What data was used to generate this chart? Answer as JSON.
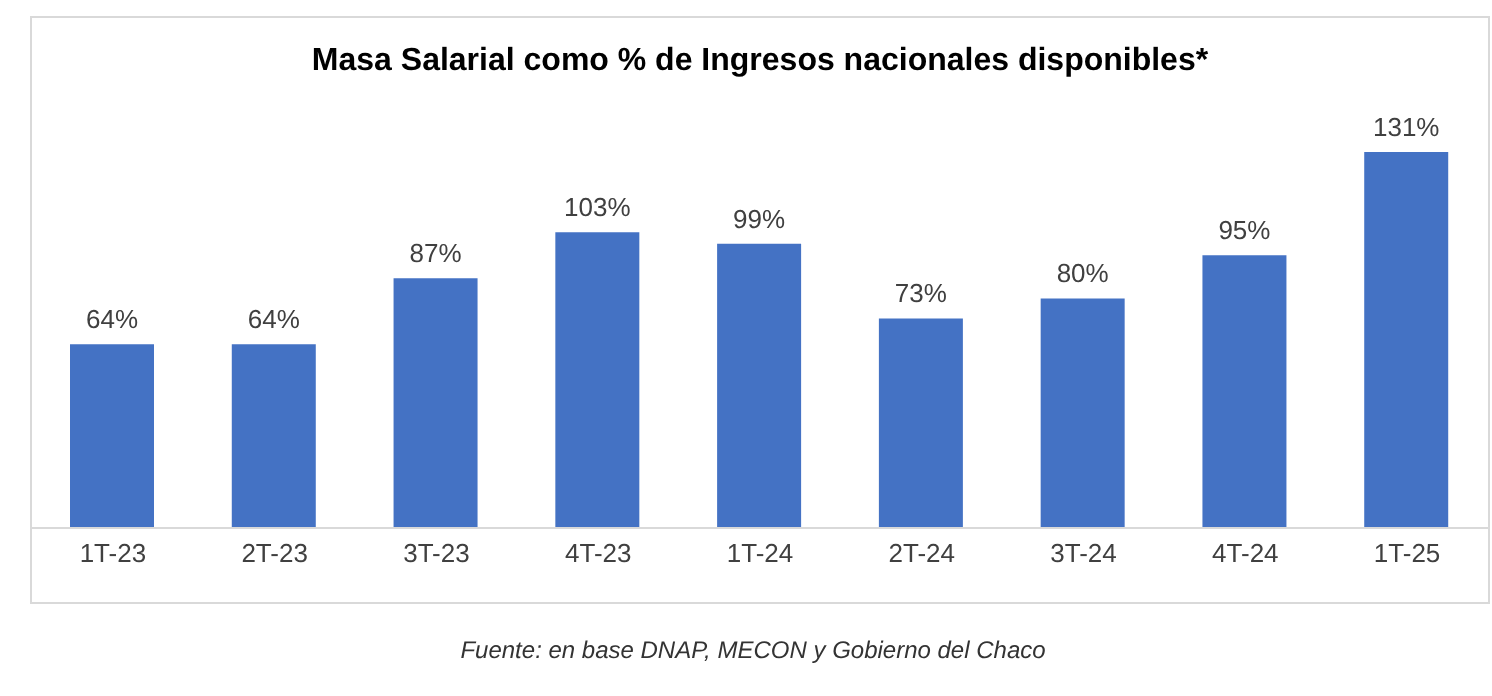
{
  "chart_data": {
    "type": "bar",
    "title": "Masa Salarial como % de Ingresos nacionales disponibles*",
    "categories": [
      "1T-23",
      "2T-23",
      "3T-23",
      "4T-23",
      "1T-24",
      "2T-24",
      "3T-24",
      "4T-24",
      "1T-25"
    ],
    "values": [
      64,
      64,
      87,
      103,
      99,
      73,
      80,
      95,
      131
    ],
    "value_labels": [
      "64%",
      "64%",
      "87%",
      "103%",
      "99%",
      "73%",
      "80%",
      "95%",
      "131%"
    ],
    "color": "#4472c4",
    "tick_labels": "x",
    "annotations": [
      "Fuente: en base DNAP, MECON y Gobierno del Chaco"
    ]
  }
}
